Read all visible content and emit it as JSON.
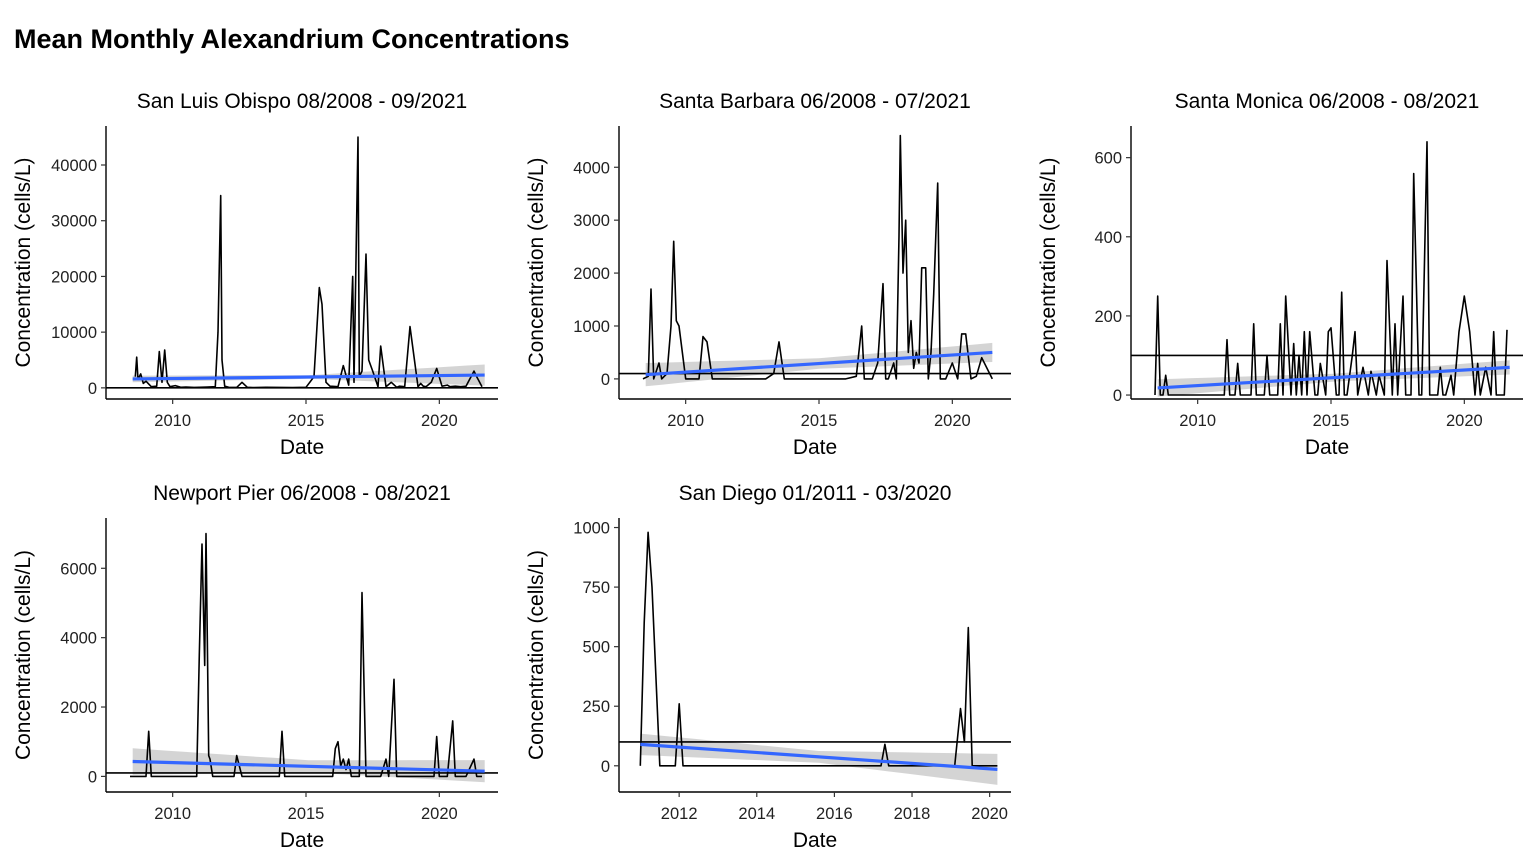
{
  "title": "Mean Monthly Alexandrium Concentrations",
  "colors": {
    "series": "#000000",
    "trend": "#3366FF",
    "band": "#CCCCCC",
    "threshold": "#000000"
  },
  "chart_data": [
    {
      "type": "line",
      "title": "San Luis Obispo 08/2008 - 09/2021",
      "xlabel": "Date",
      "ylabel": "Concentration (cells/L)",
      "xlim": [
        2007.5,
        2022.2
      ],
      "ylim": [
        -2000,
        47000
      ],
      "xticks": [
        2010,
        2015,
        2020
      ],
      "xtick_labels": [
        "2010",
        "2015",
        "2020"
      ],
      "yticks": [
        0,
        10000,
        20000,
        30000,
        40000
      ],
      "ytick_labels": [
        "0",
        "10000",
        "20000",
        "30000",
        "40000"
      ],
      "threshold": 0,
      "series": {
        "x": [
          2008.6,
          2008.65,
          2008.7,
          2008.8,
          2008.9,
          2009.0,
          2009.2,
          2009.4,
          2009.5,
          2009.6,
          2009.7,
          2009.8,
          2009.9,
          2010.1,
          2010.3,
          2010.5,
          2010.8,
          2011.0,
          2011.3,
          2011.6,
          2011.7,
          2011.8,
          2011.85,
          2011.95,
          2012.1,
          2012.4,
          2012.6,
          2012.8,
          2013.0,
          2013.5,
          2014.0,
          2014.5,
          2015.0,
          2015.3,
          2015.5,
          2015.6,
          2015.75,
          2015.9,
          2016.2,
          2016.4,
          2016.6,
          2016.75,
          2016.8,
          2016.95,
          2017.0,
          2017.1,
          2017.25,
          2017.35,
          2017.5,
          2017.7,
          2017.8,
          2018.0,
          2018.2,
          2018.4,
          2018.5,
          2018.7,
          2018.9,
          2019.2,
          2019.3,
          2019.4,
          2019.5,
          2019.7,
          2019.9,
          2020.1,
          2020.3,
          2020.4,
          2020.6,
          2020.8,
          2021.0,
          2021.3,
          2021.4,
          2021.6
        ],
        "y": [
          2000,
          5500,
          1500,
          2500,
          800,
          1200,
          200,
          300,
          6500,
          1000,
          6800,
          1000,
          200,
          400,
          100,
          150,
          80,
          100,
          150,
          200,
          10000,
          34500,
          5000,
          300,
          100,
          80,
          1000,
          100,
          50,
          100,
          80,
          60,
          100,
          2000,
          18000,
          15000,
          1000,
          300,
          200,
          4000,
          500,
          20000,
          1000,
          45000,
          2000,
          3000,
          24000,
          5000,
          3000,
          200,
          7500,
          200,
          1000,
          100,
          300,
          200,
          11000,
          200,
          800,
          300,
          200,
          1000,
          3500,
          300,
          500,
          200,
          300,
          200,
          300,
          3000,
          2000,
          200
        ]
      },
      "trend": {
        "x": [
          2008.5,
          2021.7
        ],
        "y": [
          1600,
          2300
        ],
        "band_halfwidth": [
          600,
          1900
        ]
      }
    },
    {
      "type": "line",
      "title": "Santa Barbara 06/2008 - 07/2021",
      "xlabel": "Date",
      "ylabel": "Concentration (cells/L)",
      "xlim": [
        2007.5,
        2022.2
      ],
      "ylim": [
        -380,
        4780
      ],
      "xticks": [
        2010,
        2015,
        2020
      ],
      "xtick_labels": [
        "2010",
        "2015",
        "2020"
      ],
      "yticks": [
        0,
        1000,
        2000,
        3000,
        4000
      ],
      "ytick_labels": [
        "0",
        "1000",
        "2000",
        "3000",
        "4000"
      ],
      "threshold": 100,
      "series": {
        "x": [
          2008.4,
          2008.6,
          2008.7,
          2008.8,
          2009.0,
          2009.1,
          2009.3,
          2009.45,
          2009.55,
          2009.65,
          2009.75,
          2010.0,
          2010.3,
          2010.5,
          2010.65,
          2010.8,
          2011.0,
          2011.5,
          2012.0,
          2012.5,
          2013.0,
          2013.3,
          2013.5,
          2013.7,
          2014.0,
          2014.5,
          2015.0,
          2015.5,
          2016.0,
          2016.4,
          2016.6,
          2016.7,
          2017.0,
          2017.2,
          2017.4,
          2017.5,
          2017.6,
          2017.8,
          2017.9,
          2018.0,
          2018.05,
          2018.15,
          2018.25,
          2018.35,
          2018.45,
          2018.55,
          2018.65,
          2018.75,
          2018.85,
          2019.0,
          2019.1,
          2019.2,
          2019.3,
          2019.45,
          2019.55,
          2019.65,
          2019.75,
          2020.0,
          2020.2,
          2020.35,
          2020.5,
          2020.7,
          2020.9,
          2021.1,
          2021.5
        ],
        "y": [
          0,
          50,
          1700,
          0,
          300,
          0,
          100,
          1000,
          2600,
          1100,
          1000,
          0,
          0,
          0,
          800,
          700,
          0,
          0,
          0,
          0,
          0,
          100,
          700,
          0,
          0,
          0,
          0,
          0,
          0,
          50,
          1000,
          0,
          0,
          300,
          1800,
          0,
          0,
          300,
          0,
          2700,
          4600,
          2000,
          3000,
          500,
          1100,
          200,
          500,
          300,
          2100,
          2100,
          0,
          500,
          1600,
          3700,
          0,
          0,
          0,
          300,
          0,
          850,
          850,
          0,
          50,
          400,
          0
        ]
      },
      "trend": {
        "x": [
          2008.5,
          2021.5
        ],
        "y": [
          80,
          500
        ],
        "band_halfwidth": [
          220,
          180
        ]
      }
    },
    {
      "type": "line",
      "title": "Santa Monica 06/2008 - 08/2021",
      "xlabel": "Date",
      "ylabel": "Concentration (cells/L)",
      "xlim": [
        2007.5,
        2022.2
      ],
      "ylim": [
        -10,
        680
      ],
      "xticks": [
        2010,
        2015,
        2020
      ],
      "xtick_labels": [
        "2010",
        "2015",
        "2020"
      ],
      "yticks": [
        0,
        200,
        400,
        600
      ],
      "ytick_labels": [
        "0",
        "200",
        "400",
        "600"
      ],
      "threshold": 100,
      "series": {
        "x": [
          2008.4,
          2008.5,
          2008.6,
          2008.7,
          2008.8,
          2008.9,
          2009.0,
          2009.5,
          2010.0,
          2010.5,
          2011.0,
          2011.1,
          2011.2,
          2011.4,
          2011.5,
          2011.6,
          2012.0,
          2012.1,
          2012.2,
          2012.5,
          2012.6,
          2012.7,
          2013.0,
          2013.1,
          2013.2,
          2013.3,
          2013.5,
          2013.6,
          2013.7,
          2013.8,
          2013.9,
          2014.0,
          2014.1,
          2014.2,
          2014.4,
          2014.5,
          2014.6,
          2014.8,
          2014.9,
          2015.0,
          2015.2,
          2015.3,
          2015.4,
          2015.5,
          2015.6,
          2015.8,
          2015.9,
          2016.0,
          2016.2,
          2016.4,
          2016.5,
          2016.7,
          2016.8,
          2017.0,
          2017.1,
          2017.3,
          2017.4,
          2017.5,
          2017.7,
          2017.8,
          2018.0,
          2018.1,
          2018.3,
          2018.4,
          2018.6,
          2018.7,
          2018.8,
          2019.0,
          2019.1,
          2019.2,
          2019.3,
          2019.5,
          2019.6,
          2019.8,
          2020.0,
          2020.2,
          2020.4,
          2020.5,
          2020.6,
          2020.8,
          2021.0,
          2021.1,
          2021.2,
          2021.4,
          2021.5,
          2021.6
        ],
        "y": [
          0,
          250,
          0,
          0,
          50,
          0,
          0,
          0,
          0,
          0,
          0,
          140,
          0,
          0,
          80,
          0,
          0,
          180,
          0,
          0,
          100,
          0,
          0,
          180,
          0,
          250,
          0,
          130,
          0,
          100,
          0,
          160,
          0,
          160,
          0,
          0,
          80,
          0,
          160,
          170,
          0,
          0,
          260,
          0,
          0,
          100,
          160,
          0,
          70,
          0,
          60,
          0,
          50,
          0,
          340,
          0,
          180,
          0,
          250,
          0,
          0,
          560,
          0,
          0,
          640,
          0,
          0,
          0,
          70,
          0,
          0,
          50,
          0,
          160,
          250,
          160,
          0,
          80,
          0,
          70,
          0,
          160,
          0,
          0,
          0,
          165
        ]
      },
      "trend": {
        "x": [
          2008.5,
          2021.7
        ],
        "y": [
          18,
          70
        ],
        "band_halfwidth": [
          22,
          18
        ]
      }
    },
    {
      "type": "line",
      "title": "Newport Pier 06/2008 - 08/2021",
      "xlabel": "Date",
      "ylabel": "Concentration (cells/L)",
      "xlim": [
        2007.5,
        2022.2
      ],
      "ylim": [
        -450,
        7450
      ],
      "xticks": [
        2010,
        2015,
        2020
      ],
      "xtick_labels": [
        "2010",
        "2015",
        "2020"
      ],
      "yticks": [
        0,
        2000,
        4000,
        6000
      ],
      "ytick_labels": [
        "0",
        "2000",
        "4000",
        "6000"
      ],
      "threshold": 100,
      "series": {
        "x": [
          2008.4,
          2009.0,
          2009.1,
          2009.2,
          2009.5,
          2010.0,
          2010.5,
          2010.9,
          2011.0,
          2011.1,
          2011.2,
          2011.25,
          2011.3,
          2011.35,
          2011.4,
          2011.5,
          2011.7,
          2012.0,
          2012.3,
          2012.4,
          2012.6,
          2013.0,
          2013.5,
          2014.0,
          2014.1,
          2014.2,
          2014.5,
          2015.0,
          2015.5,
          2016.0,
          2016.1,
          2016.2,
          2016.3,
          2016.4,
          2016.5,
          2016.6,
          2016.7,
          2016.8,
          2016.9,
          2017.0,
          2017.1,
          2017.25,
          2017.35,
          2017.5,
          2017.7,
          2017.8,
          2018.0,
          2018.1,
          2018.3,
          2018.4,
          2018.6,
          2019.0,
          2019.5,
          2019.8,
          2019.9,
          2020.0,
          2020.1,
          2020.3,
          2020.5,
          2020.6,
          2020.8,
          2021.0,
          2021.3,
          2021.4,
          2021.6
        ],
        "y": [
          0,
          0,
          1300,
          0,
          0,
          0,
          0,
          0,
          3500,
          6700,
          3200,
          7000,
          4000,
          600,
          500,
          0,
          0,
          0,
          0,
          600,
          0,
          0,
          0,
          0,
          1300,
          0,
          0,
          0,
          0,
          0,
          800,
          1000,
          300,
          500,
          200,
          500,
          0,
          0,
          0,
          0,
          5300,
          0,
          0,
          0,
          0,
          0,
          500,
          0,
          2800,
          0,
          0,
          0,
          0,
          0,
          1150,
          0,
          0,
          0,
          1600,
          0,
          0,
          0,
          500,
          0,
          0
        ]
      },
      "trend": {
        "x": [
          2008.5,
          2021.7
        ],
        "y": [
          430,
          150
        ],
        "band_halfwidth": [
          380,
          320
        ]
      }
    },
    {
      "type": "line",
      "title": "San Diego 01/2011 - 03/2020",
      "xlabel": "Date",
      "ylabel": "Concentration (cells/L)",
      "xlim": [
        2010.45,
        2020.55
      ],
      "ylim": [
        -110,
        1040
      ],
      "xticks": [
        2012,
        2014,
        2016,
        2018,
        2020
      ],
      "xtick_labels": [
        "2012",
        "2014",
        "2016",
        "2018",
        "2020"
      ],
      "yticks": [
        0,
        250,
        500,
        750,
        1000
      ],
      "ytick_labels": [
        "0",
        "250",
        "500",
        "750",
        "1000"
      ],
      "threshold": 100,
      "series": {
        "x": [
          2011.0,
          2011.1,
          2011.2,
          2011.3,
          2011.5,
          2011.9,
          2012.0,
          2012.1,
          2012.2,
          2012.5,
          2013.0,
          2014.0,
          2015.0,
          2016.0,
          2017.0,
          2017.2,
          2017.3,
          2017.4,
          2018.0,
          2018.5,
          2019.0,
          2019.1,
          2019.25,
          2019.35,
          2019.45,
          2019.55,
          2019.7,
          2020.0,
          2020.2
        ],
        "y": [
          0,
          600,
          980,
          750,
          0,
          0,
          260,
          0,
          0,
          0,
          0,
          0,
          0,
          0,
          0,
          0,
          90,
          0,
          0,
          0,
          0,
          0,
          240,
          100,
          580,
          0,
          0,
          0,
          0
        ]
      },
      "trend": {
        "x": [
          2011.0,
          2020.2
        ],
        "y": [
          90,
          -15
        ],
        "band_halfwidth": [
          45,
          65
        ]
      }
    }
  ]
}
